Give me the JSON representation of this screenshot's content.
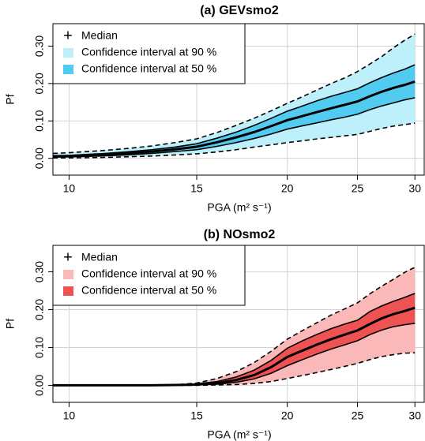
{
  "chart_data": [
    {
      "type": "line",
      "title": "(a) GEVsmo2",
      "xlabel": "PGA (m² s⁻¹)",
      "ylabel": "Pf",
      "xscale": "log",
      "grid": true,
      "legend": "upper left",
      "x": [
        9.5,
        10,
        11,
        12,
        13,
        14,
        15,
        16,
        17,
        18,
        19,
        20,
        21,
        22,
        23,
        24,
        25,
        26,
        27,
        28,
        29,
        30
      ],
      "xlim": [
        9.5,
        30.9
      ],
      "xticks": [
        10,
        15,
        20,
        25,
        30
      ],
      "ylim": [
        -0.045,
        0.36
      ],
      "yticks": [
        {
          "value": 0,
          "label": "0.00"
        },
        {
          "value": 0.1,
          "label": "0.10"
        },
        {
          "value": 0.2,
          "label": "0.20"
        },
        {
          "value": 0.3,
          "label": "0.30"
        }
      ],
      "median": {
        "name": "Median",
        "color": "#000000",
        "values": [
          0.005,
          0.006,
          0.009,
          0.013,
          0.018,
          0.024,
          0.031,
          0.043,
          0.056,
          0.07,
          0.086,
          0.102,
          0.113,
          0.124,
          0.134,
          0.143,
          0.152,
          0.166,
          0.178,
          0.188,
          0.196,
          0.205
        ]
      },
      "bands": [
        {
          "name": "Confidence interval at 90 %",
          "color": "#bdf0fb",
          "line": "dashed",
          "lower": [
            0.001,
            0.001,
            0.002,
            0.004,
            0.006,
            0.009,
            0.012,
            0.017,
            0.023,
            0.03,
            0.036,
            0.042,
            0.047,
            0.052,
            0.056,
            0.06,
            0.064,
            0.072,
            0.08,
            0.086,
            0.09,
            0.094
          ],
          "upper": [
            0.013,
            0.015,
            0.02,
            0.026,
            0.033,
            0.042,
            0.052,
            0.069,
            0.088,
            0.107,
            0.127,
            0.147,
            0.165,
            0.183,
            0.2,
            0.215,
            0.232,
            0.252,
            0.272,
            0.295,
            0.315,
            0.332
          ]
        },
        {
          "name": "Confidence interval at 50 %",
          "color": "#52cbf0",
          "line": "solid",
          "lower": [
            0.003,
            0.004,
            0.006,
            0.009,
            0.013,
            0.018,
            0.023,
            0.032,
            0.042,
            0.053,
            0.065,
            0.078,
            0.087,
            0.095,
            0.103,
            0.11,
            0.118,
            0.13,
            0.14,
            0.148,
            0.156,
            0.162
          ],
          "upper": [
            0.007,
            0.008,
            0.012,
            0.017,
            0.023,
            0.03,
            0.039,
            0.054,
            0.07,
            0.088,
            0.107,
            0.126,
            0.14,
            0.154,
            0.166,
            0.176,
            0.186,
            0.202,
            0.216,
            0.228,
            0.238,
            0.25
          ]
        }
      ]
    },
    {
      "type": "line",
      "title": "(b) NOsmo2",
      "xlabel": "PGA (m² s⁻¹)",
      "ylabel": "Pf",
      "xscale": "log",
      "grid": true,
      "legend": "upper left",
      "x": [
        9.5,
        10,
        11,
        12,
        13,
        14,
        15,
        16,
        17,
        18,
        19,
        20,
        21,
        22,
        23,
        24,
        25,
        26,
        27,
        28,
        29,
        30
      ],
      "xlim": [
        9.5,
        30.9
      ],
      "xticks": [
        10,
        15,
        20,
        25,
        30
      ],
      "ylim": [
        -0.045,
        0.37
      ],
      "yticks": [
        {
          "value": 0,
          "label": "0.00"
        },
        {
          "value": 0.1,
          "label": "0.10"
        },
        {
          "value": 0.2,
          "label": "0.20"
        },
        {
          "value": 0.3,
          "label": "0.30"
        }
      ],
      "median": {
        "name": "Median",
        "color": "#000000",
        "values": [
          0,
          0,
          0,
          0,
          0,
          0.001,
          0.002,
          0.006,
          0.014,
          0.027,
          0.048,
          0.075,
          0.092,
          0.108,
          0.122,
          0.134,
          0.145,
          0.162,
          0.177,
          0.188,
          0.196,
          0.205
        ]
      },
      "bands": [
        {
          "name": "Confidence interval at 90 %",
          "color": "#fbb8b8",
          "line": "dashed",
          "lower": [
            0,
            0,
            0,
            0,
            0,
            0,
            0,
            0.001,
            0.002,
            0.005,
            0.01,
            0.018,
            0.026,
            0.034,
            0.042,
            0.05,
            0.058,
            0.068,
            0.076,
            0.081,
            0.085,
            0.086
          ],
          "upper": [
            0,
            0,
            0,
            0,
            0,
            0.001,
            0.006,
            0.018,
            0.036,
            0.06,
            0.09,
            0.122,
            0.145,
            0.166,
            0.186,
            0.202,
            0.218,
            0.242,
            0.262,
            0.28,
            0.298,
            0.312
          ]
        },
        {
          "name": "Confidence interval at 50 %",
          "color": "#ef5252",
          "line": "solid",
          "lower": [
            0,
            0,
            0,
            0,
            0,
            0,
            0.001,
            0.003,
            0.008,
            0.017,
            0.032,
            0.052,
            0.068,
            0.083,
            0.096,
            0.107,
            0.118,
            0.134,
            0.146,
            0.155,
            0.16,
            0.164
          ],
          "upper": [
            0,
            0,
            0,
            0,
            0,
            0.001,
            0.004,
            0.01,
            0.022,
            0.04,
            0.066,
            0.098,
            0.118,
            0.135,
            0.15,
            0.162,
            0.172,
            0.195,
            0.21,
            0.222,
            0.232,
            0.243
          ]
        }
      ]
    }
  ]
}
